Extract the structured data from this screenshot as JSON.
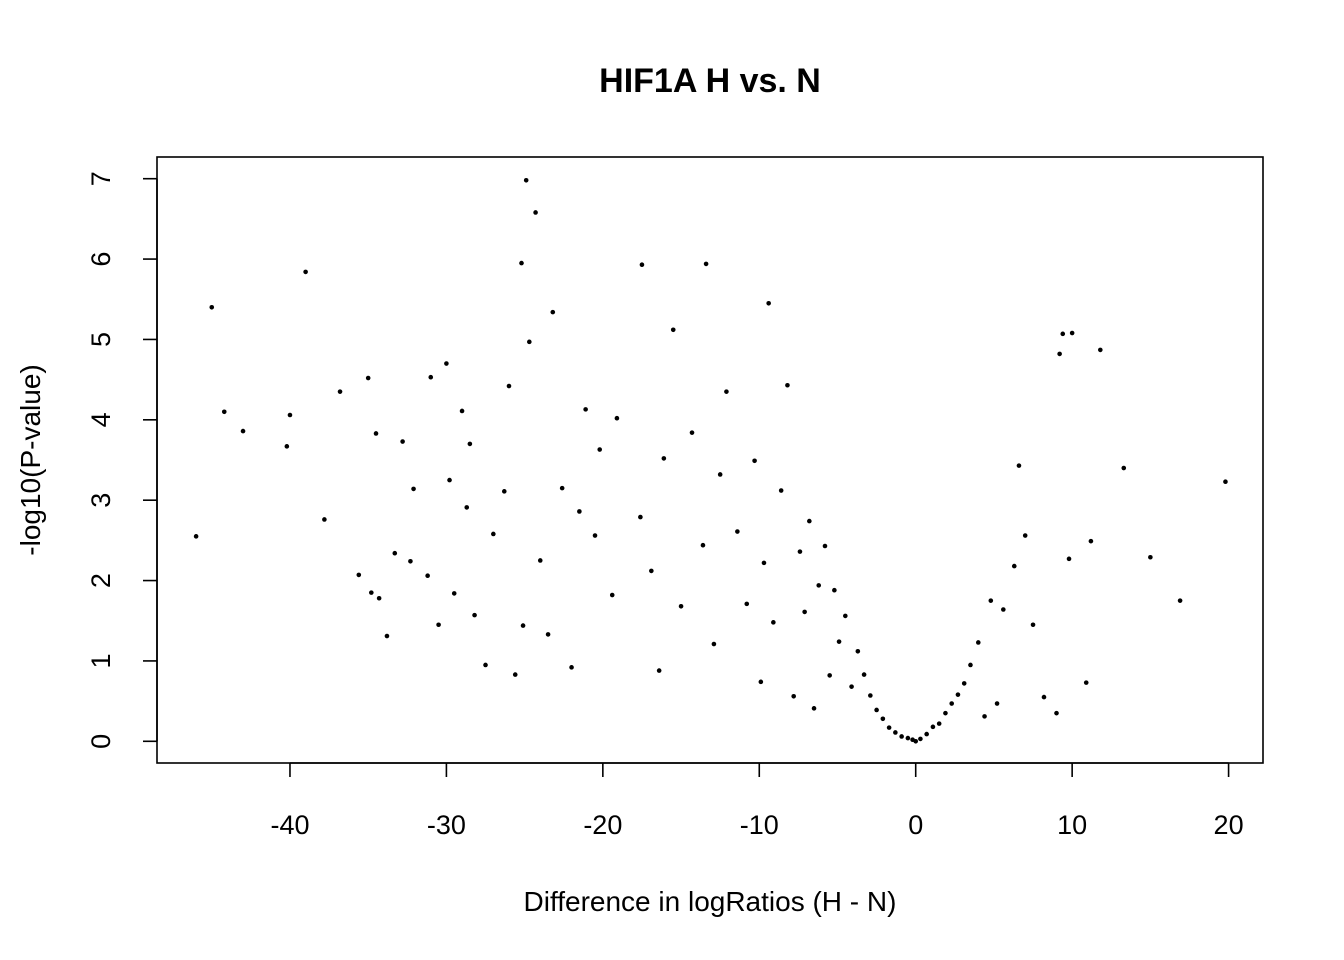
{
  "chart_data": {
    "type": "scatter",
    "title": "HIF1A H vs. N",
    "xlabel": "Difference in logRatios (H - N)",
    "ylabel": "-log10(P-value)",
    "xlim": [
      -48.5,
      22.2
    ],
    "ylim": [
      -0.27,
      7.27
    ],
    "xticks": [
      -40,
      -30,
      -20,
      -10,
      0,
      10,
      20
    ],
    "xtick_labels": [
      "-40",
      "-30",
      "-20",
      "-10",
      "0",
      "10",
      "20"
    ],
    "yticks": [
      0,
      1,
      2,
      3,
      4,
      5,
      6,
      7
    ],
    "ytick_labels": [
      "0",
      "1",
      "2",
      "3",
      "4",
      "5",
      "6",
      "7"
    ],
    "grid": false,
    "legend": "none",
    "marker_color": "#000000",
    "x": [
      -46,
      -45,
      -44.2,
      -43,
      -40.2,
      -40,
      -39,
      -37.8,
      -36.8,
      -35.6,
      -35,
      -34.8,
      -34.5,
      -34.3,
      -33.8,
      -33.3,
      -32.8,
      -32.3,
      -32.1,
      -31.2,
      -31,
      -30.5,
      -30,
      -29.8,
      -29.5,
      -29,
      -28.7,
      -28.5,
      -28.2,
      -27.5,
      -27,
      -26.3,
      -26,
      -25.6,
      -25.2,
      -25.1,
      -24.9,
      -24.7,
      -24.3,
      -24,
      -23.5,
      -23.2,
      -22.6,
      -22,
      -21.5,
      -21.1,
      -20.5,
      -20.2,
      -19.4,
      -19.1,
      -17.6,
      -17.5,
      -16.9,
      -16.4,
      -16.1,
      -15.5,
      -15,
      -14.3,
      -13.6,
      -13.4,
      -12.9,
      -12.5,
      -12.1,
      -11.4,
      -10.8,
      -10.3,
      -9.9,
      -9.7,
      -9.4,
      -9.1,
      -8.6,
      -8.2,
      -7.8,
      -7.4,
      -7.1,
      -6.8,
      -6.5,
      -6.2,
      -5.8,
      -5.5,
      -5.2,
      -4.9,
      -4.5,
      -4.1,
      -3.7,
      -3.3,
      -2.9,
      -2.5,
      -2.1,
      -1.7,
      -1.3,
      -0.9,
      -0.5,
      -0.2,
      0,
      0.3,
      0.7,
      1.1,
      1.5,
      1.9,
      2.3,
      2.7,
      3.1,
      3.5,
      4,
      4.4,
      4.8,
      5.2,
      5.6,
      6.3,
      6.6,
      7,
      7.5,
      8.2,
      9,
      9.2,
      9.4,
      9.8,
      10,
      10.9,
      11.2,
      11.8,
      13.3,
      15,
      16.9,
      19.8
    ],
    "y": [
      2.55,
      5.4,
      4.1,
      3.86,
      3.67,
      4.06,
      5.84,
      2.76,
      4.35,
      2.07,
      4.52,
      1.85,
      3.83,
      1.78,
      1.31,
      2.34,
      3.73,
      2.24,
      3.14,
      2.06,
      4.53,
      1.45,
      4.7,
      3.25,
      1.84,
      4.11,
      2.91,
      3.7,
      1.57,
      0.95,
      2.58,
      3.11,
      4.42,
      0.83,
      5.95,
      1.44,
      6.98,
      4.97,
      6.58,
      2.25,
      1.33,
      5.34,
      3.15,
      0.92,
      2.86,
      4.13,
      2.56,
      3.63,
      1.82,
      4.02,
      2.79,
      5.93,
      2.12,
      0.88,
      3.52,
      5.12,
      1.68,
      3.84,
      2.44,
      5.94,
      1.21,
      3.32,
      4.35,
      2.61,
      1.71,
      3.49,
      0.74,
      2.22,
      5.45,
      1.48,
      3.12,
      4.43,
      0.56,
      2.36,
      1.61,
      2.74,
      0.41,
      1.94,
      2.43,
      0.82,
      1.88,
      1.24,
      1.56,
      0.68,
      1.12,
      0.83,
      0.57,
      0.39,
      0.28,
      0.17,
      0.11,
      0.06,
      0.04,
      0.02,
      0.0,
      0.03,
      0.09,
      0.18,
      0.22,
      0.35,
      0.47,
      0.58,
      0.72,
      0.95,
      1.23,
      0.31,
      1.75,
      0.47,
      1.64,
      2.18,
      3.43,
      2.56,
      1.45,
      0.55,
      0.35,
      4.82,
      5.07,
      2.27,
      5.08,
      0.73,
      2.49,
      4.87,
      3.4,
      2.29,
      1.75,
      3.23
    ]
  }
}
